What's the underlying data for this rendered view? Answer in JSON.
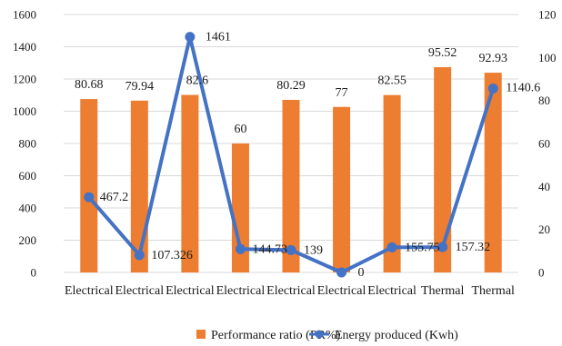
{
  "chart_data": {
    "type": "bar",
    "categories": [
      "Electrical",
      "Electrical",
      "Electrical",
      "Electrical",
      "Electrical",
      "Electrical",
      "Electrical",
      "Thermal",
      "Thermal"
    ],
    "series": [
      {
        "name": "Performance ratio (PR%)",
        "type": "bar",
        "axis": "right",
        "color": "#ED7D31",
        "values": [
          80.68,
          79.94,
          82.6,
          60,
          80.29,
          77,
          82.55,
          95.52,
          92.93
        ],
        "labels": [
          "80.68",
          "79.94",
          "82.6",
          "60",
          "80.29",
          "77",
          "82.55",
          "95.52",
          "92.93"
        ]
      },
      {
        "name": "Energy produced (Kwh)",
        "type": "line",
        "axis": "left",
        "color": "#4472C4",
        "values": [
          467.2,
          107.326,
          1461,
          144.73,
          139,
          0,
          155.75,
          157.32,
          1140.6
        ],
        "labels": [
          "467.2",
          "107.326",
          "1461",
          "144.73",
          "139",
          "0",
          "155.75",
          "157.32",
          "1140.6"
        ]
      }
    ],
    "y_left": {
      "lim": [
        0,
        1600
      ],
      "ticks": [
        "0",
        "200",
        "400",
        "600",
        "800",
        "1000",
        "1200",
        "1400",
        "1600"
      ]
    },
    "y_right": {
      "lim": [
        0,
        120
      ],
      "ticks": [
        "0",
        "20",
        "40",
        "60",
        "80",
        "100",
        "120"
      ]
    },
    "grid": true,
    "legend": "bottom"
  }
}
